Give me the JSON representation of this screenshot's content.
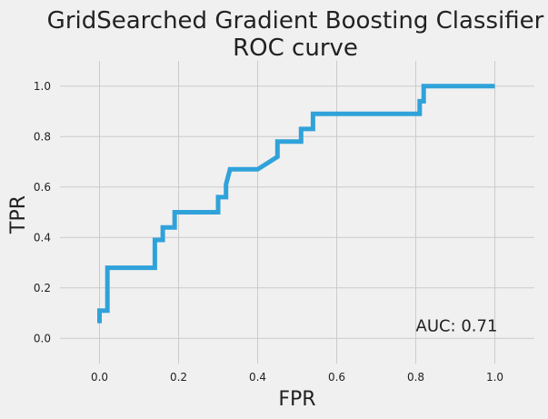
{
  "chart_data": {
    "type": "line",
    "title": [
      "GridSearched Gradient Boosting Classifier",
      "ROC curve"
    ],
    "xlabel": "FPR",
    "ylabel": "TPR",
    "xlim": [
      -0.1,
      1.1
    ],
    "ylim": [
      -0.1,
      1.1
    ],
    "grid": true,
    "line_color": "#30a2da",
    "x_ticks": [
      0.0,
      0.2,
      0.4,
      0.6,
      0.8,
      1.0
    ],
    "x_tick_labels": [
      "0.0",
      "0.2",
      "0.4",
      "0.6",
      "0.8",
      "1.0"
    ],
    "y_ticks": [
      0.0,
      0.2,
      0.4,
      0.6,
      0.8,
      1.0
    ],
    "y_tick_labels": [
      "0.0",
      "0.2",
      "0.4",
      "0.6",
      "0.8",
      "1.0"
    ],
    "annotation": "AUC: 0.71",
    "series": [
      {
        "x": [
          0.0,
          0.0,
          0.02,
          0.02,
          0.14,
          0.14,
          0.16,
          0.16,
          0.19,
          0.19,
          0.3,
          0.3,
          0.32,
          0.32,
          0.33,
          0.4,
          0.45,
          0.45,
          0.51,
          0.51,
          0.54,
          0.54,
          0.81,
          0.81,
          0.82,
          0.82,
          1.0
        ],
        "y": [
          0.06,
          0.11,
          0.11,
          0.28,
          0.28,
          0.39,
          0.39,
          0.44,
          0.44,
          0.5,
          0.5,
          0.56,
          0.56,
          0.61,
          0.67,
          0.67,
          0.72,
          0.78,
          0.78,
          0.83,
          0.83,
          0.89,
          0.89,
          0.94,
          0.94,
          1.0,
          1.0
        ]
      }
    ]
  }
}
